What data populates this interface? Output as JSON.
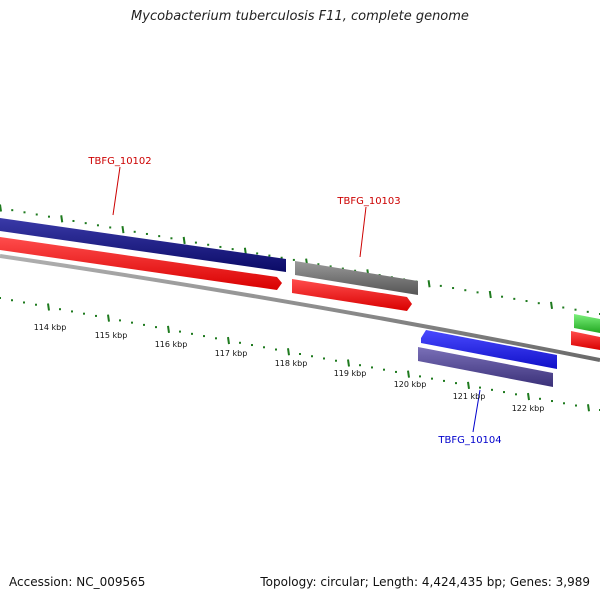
{
  "title": "Mycobacterium tuberculosis F11, complete genome",
  "footer": {
    "accession": "Accession: NC_009565",
    "summary": "Topology: circular; Length: 4,424,435 bp; Genes: 3,989"
  },
  "colors": {
    "forward_gene": "#14148a",
    "forward_cds": "#ff1a1a",
    "reverse_gene": "#1f1fe8",
    "reverse_cds": "#4a3f8c",
    "other_gene_grey": "#6e6e6e",
    "green_gene": "#3fcf3f",
    "tick": "#1e7a1e",
    "backbone": "#808080",
    "label_red": "#cc0000",
    "label_blue": "#0000cc"
  },
  "scale_labels": [
    "114 kbp",
    "115 kbp",
    "116 kbp",
    "117 kbp",
    "118 kbp",
    "119 kbp",
    "120 kbp",
    "121 kbp",
    "122 kbp"
  ],
  "gene_labels": [
    {
      "text": "TBFG_10102",
      "strand": "forward"
    },
    {
      "text": "TBFG_10103",
      "strand": "forward"
    },
    {
      "text": "TBFG_10104",
      "strand": "reverse"
    }
  ]
}
